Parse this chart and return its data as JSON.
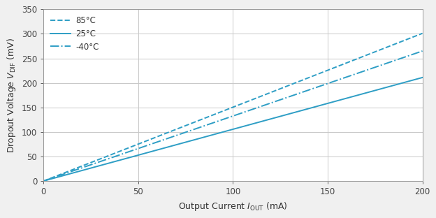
{
  "xlabel": "Output Current $I_{\\mathrm{OUT}}$ (mA)",
  "ylabel": "Dropout Voltage $V_{\\mathrm{DIF}}$ (mV)",
  "xlim": [
    0,
    200
  ],
  "ylim": [
    0,
    350
  ],
  "xticks": [
    0,
    50,
    100,
    150,
    200
  ],
  "yticks": [
    0,
    50,
    100,
    150,
    200,
    250,
    300,
    350
  ],
  "line_color": "#2e9ec5",
  "outer_bg": "#f0f0f0",
  "plot_bg": "#ffffff",
  "grid_color": "#c8c8c8",
  "series": [
    {
      "label": "85°C",
      "slope": 1.505,
      "linestyle": "--",
      "linewidth": 1.4
    },
    {
      "label": "25°C",
      "slope": 1.055,
      "linestyle": "-",
      "linewidth": 1.4
    },
    {
      "label": "-40°C",
      "slope": 1.325,
      "linestyle": "-.",
      "linewidth": 1.4
    }
  ],
  "legend_fontsize": 8.5,
  "tick_fontsize": 8.5,
  "label_fontsize": 9.0
}
